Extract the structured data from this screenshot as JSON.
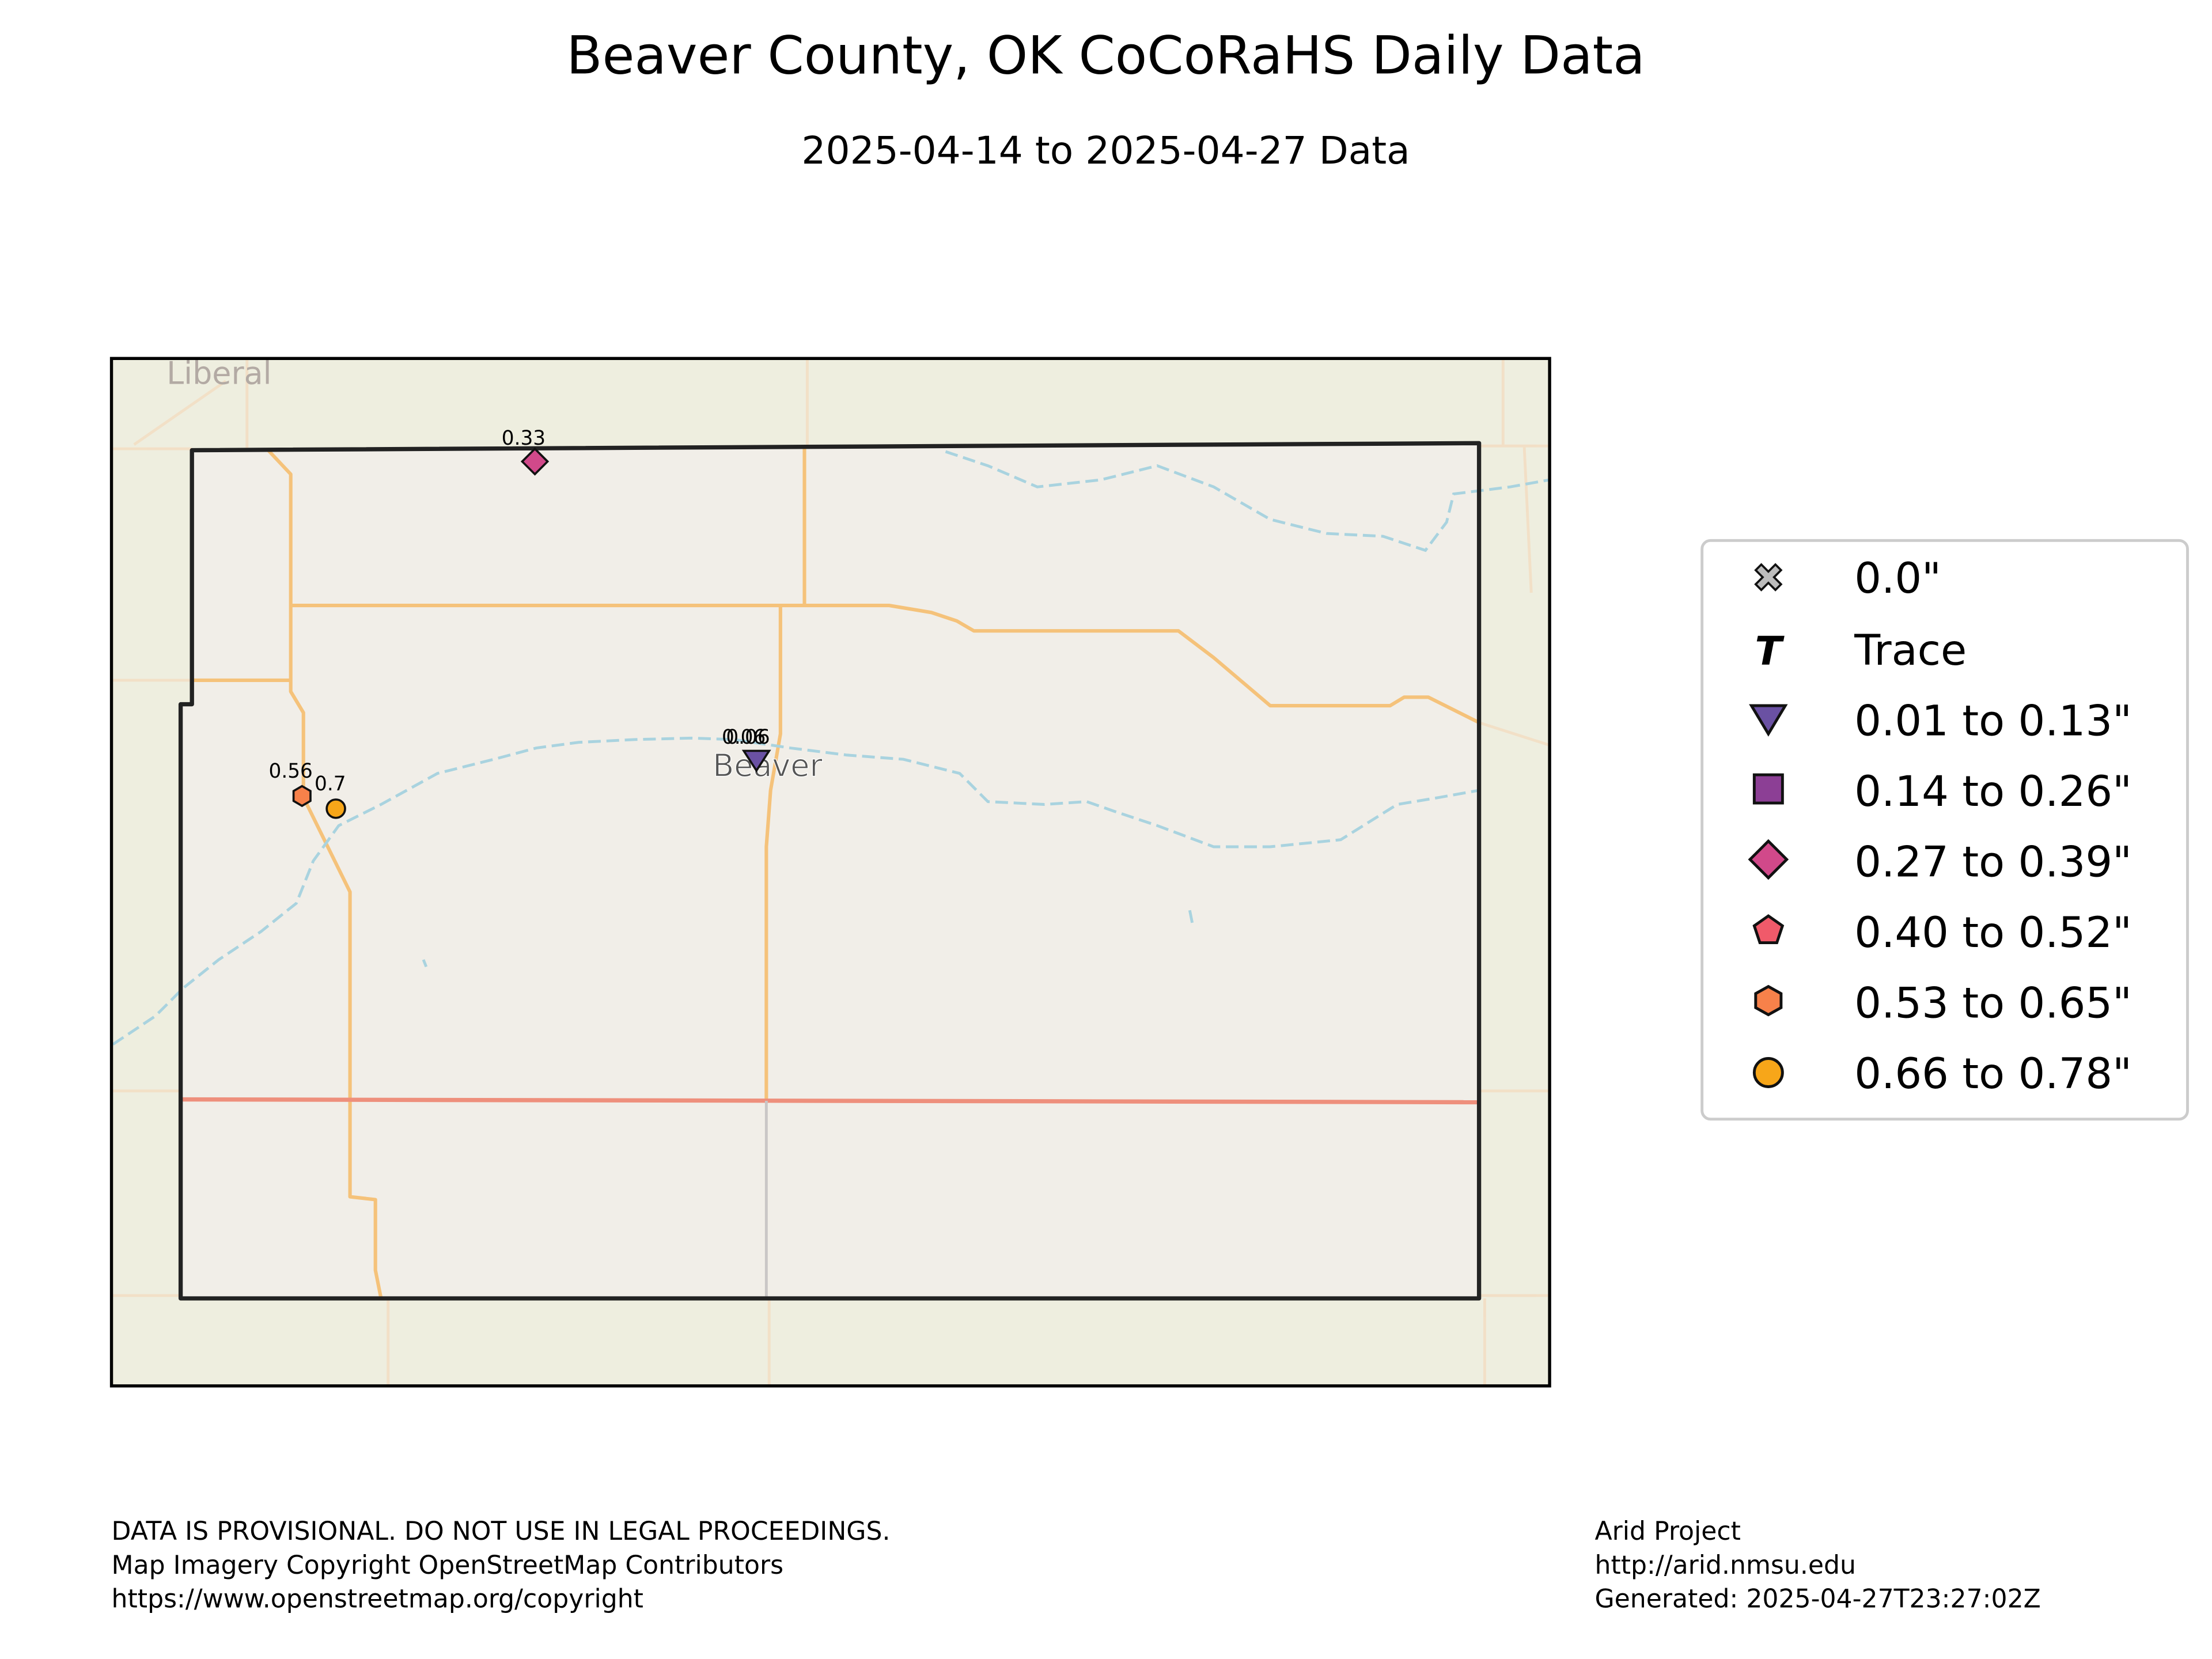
{
  "title": "Beaver County, OK CoCoRaHS Daily Data",
  "subtitle": "2025-04-14 to 2025-04-27 Data",
  "map": {
    "place_labels": [
      "Liberal",
      "Beaver"
    ],
    "colors": {
      "land": "#eeeedf",
      "county_fill": "#f1eee8",
      "road": "#f5c27a",
      "highway": "#ee8f7c",
      "river": "#a9d3df",
      "county_border": "#222222"
    },
    "stations": [
      {
        "value": "0.33",
        "category": "0.27 to 0.39\""
      },
      {
        "value": "0.06",
        "category": "0.01 to 0.13\""
      },
      {
        "value": "0.06",
        "category": "0.01 to 0.13\""
      },
      {
        "value": "0.56",
        "category": "0.53 to 0.65\""
      },
      {
        "value": "0.7",
        "category": "0.66 to 0.78\""
      }
    ]
  },
  "legend": [
    {
      "label": "0.0\"",
      "icon": "x-icon",
      "color": "#bdbdbd"
    },
    {
      "label": "Trace",
      "icon": "t-icon",
      "color": "#000000"
    },
    {
      "label": "0.01 to 0.13\"",
      "icon": "triangle-down-icon",
      "color": "#6a51a3"
    },
    {
      "label": "0.14 to 0.26\"",
      "icon": "square-icon",
      "color": "#8c3f95"
    },
    {
      "label": "0.27 to 0.39\"",
      "icon": "diamond-icon",
      "color": "#d1498a"
    },
    {
      "label": "0.40 to 0.52\"",
      "icon": "pentagon-icon",
      "color": "#f05a6a"
    },
    {
      "label": "0.53 to 0.65\"",
      "icon": "hexagon-icon",
      "color": "#f7814a"
    },
    {
      "label": "0.66 to 0.78\"",
      "icon": "circle-icon",
      "color": "#f7a619"
    }
  ],
  "footer": {
    "left": [
      "DATA IS PROVISIONAL. DO NOT USE IN LEGAL PROCEEDINGS.",
      "Map Imagery Copyright OpenStreetMap Contributors",
      "https://www.openstreetmap.org/copyright"
    ],
    "right": [
      "Arid Project",
      "http://arid.nmsu.edu",
      "Generated: 2025-04-27T23:27:02Z"
    ]
  }
}
